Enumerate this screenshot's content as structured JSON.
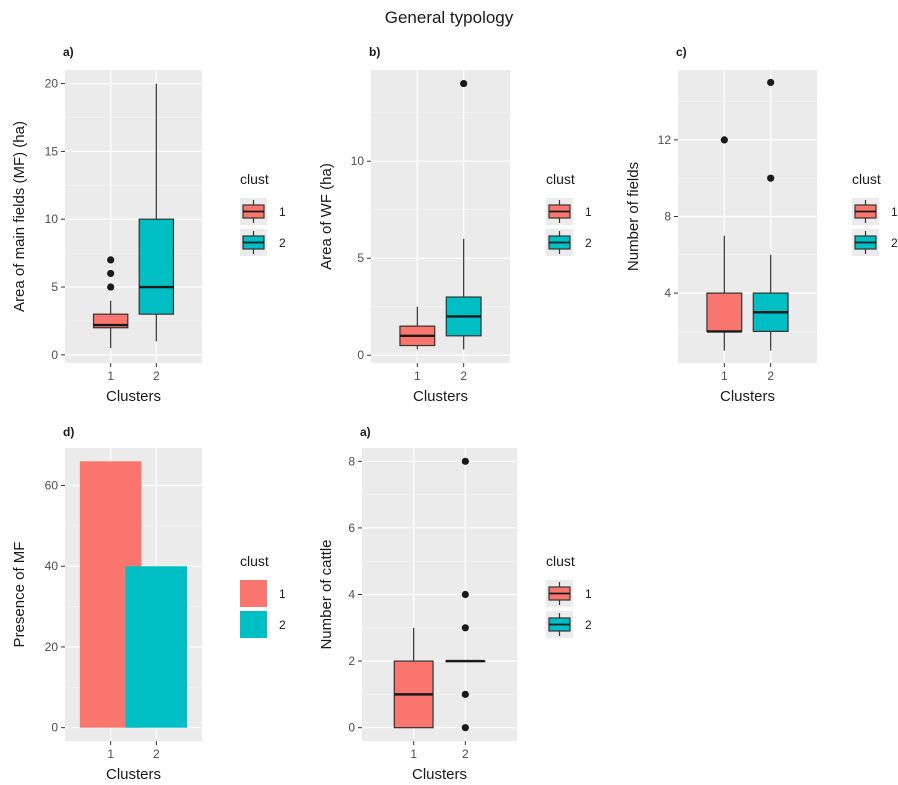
{
  "title": "General typology",
  "legend_title": "clust",
  "colors": {
    "1": "#F8766D",
    "2": "#00BFC4",
    "panel": "#EBEBEB",
    "grid_major": "#FFFFFF",
    "outline": "#333333"
  },
  "chart_data": [
    {
      "id": "a",
      "panel_label": "a)",
      "type": "box",
      "title": "",
      "xlabel": "Clusters",
      "ylabel": "Area of main fields (MF) (ha)",
      "categories": [
        "1",
        "2"
      ],
      "ylim": [
        -0.6,
        21
      ],
      "yticks": [
        0,
        5,
        10,
        15,
        20
      ],
      "boxes": [
        {
          "cluster": "1",
          "whisker_low": 0.5,
          "q1": 2,
          "median": 2.2,
          "q3": 3,
          "whisker_high": 4,
          "outliers": [
            5,
            6,
            7
          ]
        },
        {
          "cluster": "2",
          "whisker_low": 1,
          "q1": 3,
          "median": 5,
          "q3": 10,
          "whisker_high": 20,
          "outliers": []
        }
      ],
      "legend": {
        "title": "clust",
        "entries": [
          "1",
          "2"
        ]
      }
    },
    {
      "id": "b",
      "panel_label": "b)",
      "type": "box",
      "title": "",
      "xlabel": "Clusters",
      "ylabel": "Area of WF (ha)",
      "categories": [
        "1",
        "2"
      ],
      "ylim": [
        -0.4,
        14.7
      ],
      "yticks": [
        0,
        5,
        10
      ],
      "boxes": [
        {
          "cluster": "1",
          "whisker_low": 0.3,
          "q1": 0.5,
          "median": 1,
          "q3": 1.5,
          "whisker_high": 2.5,
          "outliers": []
        },
        {
          "cluster": "2",
          "whisker_low": 0.3,
          "q1": 1,
          "median": 2,
          "q3": 3,
          "whisker_high": 6,
          "outliers": [
            14
          ]
        }
      ],
      "legend": {
        "title": "clust",
        "entries": [
          "1",
          "2"
        ]
      }
    },
    {
      "id": "c",
      "panel_label": "c)",
      "type": "box",
      "title": "",
      "xlabel": "Clusters",
      "ylabel": "Number of fields",
      "categories": [
        "1",
        "2"
      ],
      "ylim": [
        0.35,
        15.65
      ],
      "yticks": [
        4,
        8,
        12
      ],
      "boxes": [
        {
          "cluster": "1",
          "whisker_low": 1,
          "q1": 2,
          "median": 2,
          "q3": 4,
          "whisker_high": 7,
          "outliers": [
            12
          ]
        },
        {
          "cluster": "2",
          "whisker_low": 1,
          "q1": 2,
          "median": 3,
          "q3": 4,
          "whisker_high": 6,
          "outliers": [
            10,
            15
          ]
        }
      ],
      "legend": {
        "title": "clust",
        "entries": [
          "1",
          "2"
        ]
      }
    },
    {
      "id": "d",
      "panel_label": "d)",
      "type": "bar",
      "title": "",
      "xlabel": "Clusters",
      "ylabel": "Presence of MF",
      "categories": [
        "1",
        "2"
      ],
      "values": [
        66,
        40
      ],
      "ylim": [
        -3.3,
        69.3
      ],
      "yticks": [
        0,
        20,
        40,
        60
      ],
      "legend": {
        "title": "clust",
        "entries": [
          "1",
          "2"
        ]
      }
    },
    {
      "id": "e",
      "panel_label": "a)",
      "type": "box",
      "title": "",
      "xlabel": "Clusters",
      "ylabel": "Number of cattle",
      "categories": [
        "1",
        "2"
      ],
      "ylim": [
        -0.4,
        8.4
      ],
      "yticks": [
        0,
        2,
        4,
        6,
        8
      ],
      "boxes": [
        {
          "cluster": "1",
          "whisker_low": 0,
          "q1": 0,
          "median": 1,
          "q3": 2,
          "whisker_high": 3,
          "outliers": []
        },
        {
          "cluster": "2",
          "whisker_low": 2,
          "q1": 2,
          "median": 2,
          "q3": 2,
          "whisker_high": 2,
          "outliers": [
            0,
            1,
            3,
            4,
            8
          ]
        }
      ],
      "legend": {
        "title": "clust",
        "entries": [
          "1",
          "2"
        ]
      }
    }
  ]
}
